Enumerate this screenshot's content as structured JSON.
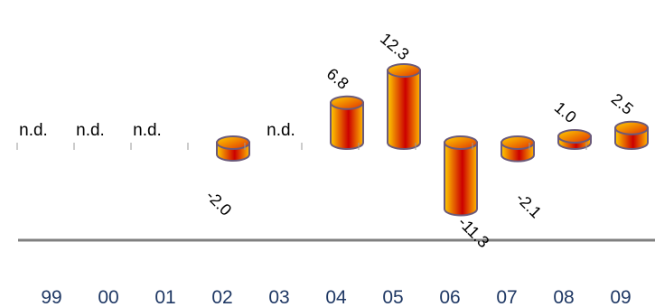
{
  "chart_data": {
    "type": "bar",
    "title": "",
    "categories": [
      "99",
      "00",
      "01",
      "02",
      "03",
      "04",
      "05",
      "06",
      "07",
      "08",
      "09"
    ],
    "values": [
      null,
      null,
      null,
      -2.0,
      null,
      6.8,
      12.3,
      -11.3,
      -2.1,
      1.0,
      2.5
    ],
    "value_labels": [
      "",
      "",
      "",
      "-2.0",
      "",
      "6.8",
      "12.3",
      "-11.3",
      "-2.1",
      "1.0",
      "2.5"
    ],
    "missing_labels": [
      "n.d.",
      "n.d.",
      "n.d.",
      "",
      "n.d.",
      "",
      "",
      "",
      "",
      "",
      ""
    ],
    "colors": {
      "bar_dark": "#cc0000",
      "bar_light": "#ffcc00",
      "bar_edge": "#6b5a7a",
      "axis": "#808080",
      "tick_label": "#1f3864"
    }
  }
}
